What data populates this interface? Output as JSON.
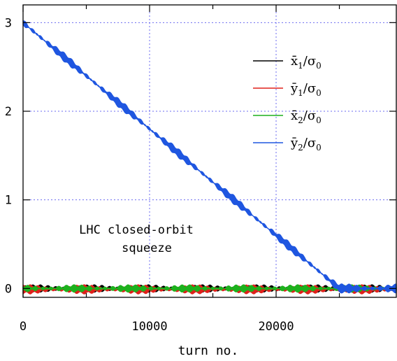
{
  "chart_data": {
    "type": "line",
    "xlabel": "turn no.",
    "ylabel": "",
    "xlim": [
      0,
      29500
    ],
    "ylim": [
      -0.1,
      3.2
    ],
    "x_ticks": [
      0,
      10000,
      20000
    ],
    "x_tick_labels": [
      "0",
      "10000",
      "20000"
    ],
    "y_ticks": [
      0,
      1,
      2,
      3
    ],
    "y_tick_labels": [
      "0",
      "1",
      "2",
      "3"
    ],
    "grid": true,
    "legend_position": "top-right",
    "annotation": [
      "LHC closed-orbit",
      "squeeze"
    ],
    "series": [
      {
        "name": "x̄1/σ0",
        "label": {
          "main": "x̄",
          "sub": "1",
          "rest": "/σ",
          "rest_sub": "0"
        },
        "color": "#000000",
        "x": [
          0,
          25000,
          29500
        ],
        "values": [
          0,
          0,
          0
        ],
        "band": 0.03
      },
      {
        "name": "ȳ1/σ0",
        "label": {
          "main": "ȳ",
          "sub": "1",
          "rest": "/σ",
          "rest_sub": "0"
        },
        "color": "#e0201b",
        "x": [
          0,
          25000,
          29500
        ],
        "values": [
          -0.01,
          -0.01,
          -0.01
        ],
        "band": 0.04
      },
      {
        "name": "x̄2/σ0",
        "label": {
          "main": "x̄",
          "sub": "2",
          "rest": "/σ",
          "rest_sub": "0"
        },
        "color": "#1db11d",
        "x": [
          0,
          25000,
          29500
        ],
        "values": [
          0,
          0,
          0
        ],
        "band": 0.03
      },
      {
        "name": "ȳ2/σ0",
        "label": {
          "main": "ȳ",
          "sub": "2",
          "rest": "/σ",
          "rest_sub": "0"
        },
        "color": "#1f56e0",
        "x": [
          0,
          25000,
          29500
        ],
        "values": [
          3.0,
          0.0,
          0.0
        ],
        "band": 0.04
      }
    ]
  }
}
